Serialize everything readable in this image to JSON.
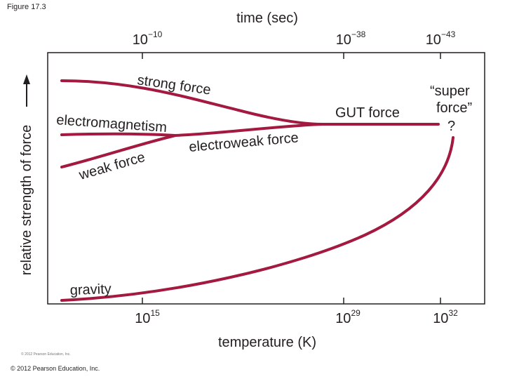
{
  "figure_label": "Figure 17.3",
  "copyright_small": "© 2012 Pearson Education, Inc.",
  "copyright": "© 2012 Pearson Education, Inc.",
  "top_axis": {
    "title": "time (sec)",
    "ticks": [
      {
        "base": "10",
        "exp": "−10"
      },
      {
        "base": "10",
        "exp": "−38"
      },
      {
        "base": "10",
        "exp": "−43"
      }
    ]
  },
  "bottom_axis": {
    "title": "temperature (K)",
    "ticks": [
      {
        "base": "10",
        "exp": "15"
      },
      {
        "base": "10",
        "exp": "29"
      },
      {
        "base": "10",
        "exp": "32"
      }
    ]
  },
  "y_axis": {
    "title": "relative strength of force"
  },
  "labels": {
    "strong": "strong force",
    "electromagnetism": "electromagnetism",
    "weak": "weak force",
    "electroweak": "electroweak force",
    "gut": "GUT force",
    "super_line1": "“super",
    "super_line2": "force”",
    "question": "?",
    "gravity": "gravity"
  },
  "colors": {
    "curve": "#a3193f",
    "frame": "#231f20"
  }
}
